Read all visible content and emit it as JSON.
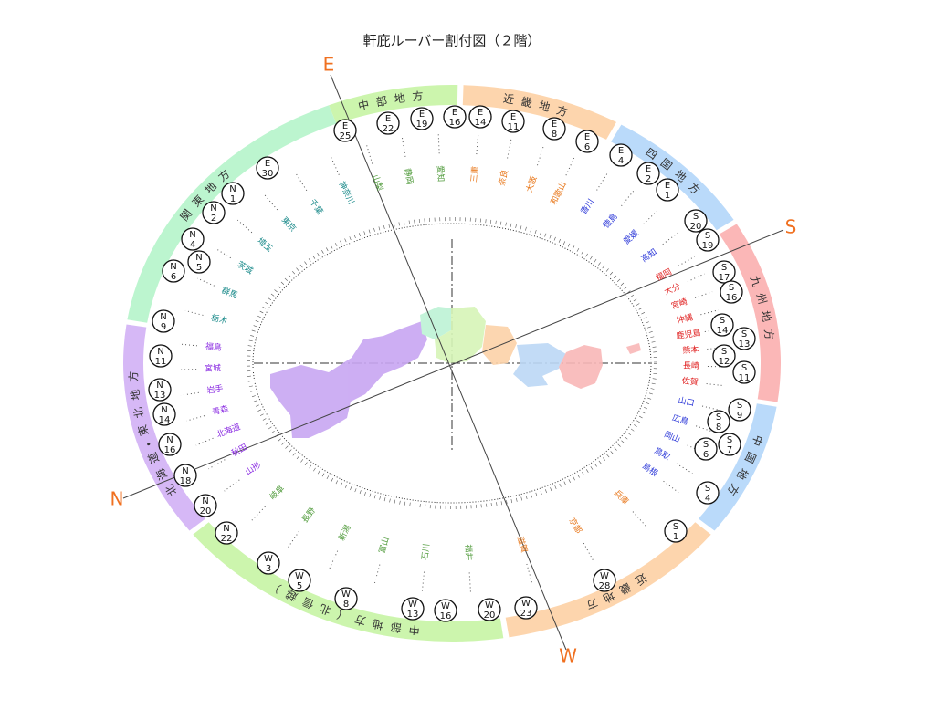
{
  "title": "軒庇ルーバー割付図（２階）",
  "compass": [
    "E",
    "S",
    "W",
    "N"
  ],
  "regions": [
    {
      "name": "中部地方",
      "color": "#ccf5ad",
      "text_color": "#4f9a3a",
      "prefectures": [
        "山梨",
        "静岡",
        "愛知"
      ]
    },
    {
      "name": "近畿地方",
      "color": "#fdd5ad",
      "text_color": "#e8781c",
      "prefectures": [
        "三重",
        "奈良",
        "大阪",
        "和歌山"
      ]
    },
    {
      "name": "四国地方",
      "color": "#badafa",
      "text_color": "#2a36d8",
      "prefectures": [
        "香川",
        "徳島",
        "愛媛",
        "高知"
      ]
    },
    {
      "name": "九州地方",
      "color": "#fbb7b7",
      "text_color": "#e02020",
      "prefectures": [
        "福岡",
        "大分",
        "宮崎",
        "沖縄",
        "鹿児島",
        "熊本",
        "長崎",
        "佐賀"
      ]
    },
    {
      "name": "中国地方",
      "color": "#badafa",
      "text_color": "#2a36d8",
      "prefectures": [
        "山口",
        "広島",
        "岡山",
        "鳥取",
        "島根"
      ]
    },
    {
      "name": "近畿地方",
      "color": "#fdd5ad",
      "text_color": "#e8781c",
      "prefectures": [
        "兵庫",
        "京都",
        "滋賀"
      ]
    },
    {
      "name": "中部地方（北信越）",
      "color": "#ccf5ad",
      "text_color": "#4f9a3a",
      "prefectures": [
        "福井",
        "石川",
        "富山",
        "新潟",
        "長野",
        "岐阜"
      ]
    },
    {
      "name": "北海道・東北地方",
      "color": "#d6b8f6",
      "text_color": "#8a2be2",
      "prefectures": [
        "山形",
        "秋田",
        "北海道",
        "青森",
        "岩手",
        "宮城",
        "福島"
      ]
    },
    {
      "name": "関東地方",
      "color": "#bcf5cf",
      "text_color": "#1a8a8a",
      "prefectures": [
        "栃木",
        "群馬",
        "茨城",
        "埼玉",
        "東京",
        "千葉",
        "神奈川"
      ]
    }
  ],
  "markers": [
    {
      "dir": "E",
      "num": 25
    },
    {
      "dir": "E",
      "num": 22
    },
    {
      "dir": "E",
      "num": 19
    },
    {
      "dir": "E",
      "num": 16
    },
    {
      "dir": "E",
      "num": 14
    },
    {
      "dir": "E",
      "num": 11
    },
    {
      "dir": "E",
      "num": 8
    },
    {
      "dir": "E",
      "num": 6
    },
    {
      "dir": "E",
      "num": 4
    },
    {
      "dir": "E",
      "num": 2
    },
    {
      "dir": "E",
      "num": 1
    },
    {
      "dir": "S",
      "num": 20
    },
    {
      "dir": "S",
      "num": 19
    },
    {
      "dir": "S",
      "num": 17
    },
    {
      "dir": "S",
      "num": 16
    },
    {
      "dir": "S",
      "num": 14
    },
    {
      "dir": "S",
      "num": 13
    },
    {
      "dir": "S",
      "num": 12
    },
    {
      "dir": "S",
      "num": 11
    },
    {
      "dir": "S",
      "num": 9
    },
    {
      "dir": "S",
      "num": 8
    },
    {
      "dir": "S",
      "num": 7
    },
    {
      "dir": "S",
      "num": 6
    },
    {
      "dir": "S",
      "num": 4
    },
    {
      "dir": "S",
      "num": 1
    },
    {
      "dir": "W",
      "num": 28
    },
    {
      "dir": "W",
      "num": 23
    },
    {
      "dir": "W",
      "num": 20
    },
    {
      "dir": "W",
      "num": 16
    },
    {
      "dir": "W",
      "num": 13
    },
    {
      "dir": "W",
      "num": 8
    },
    {
      "dir": "W",
      "num": 5
    },
    {
      "dir": "W",
      "num": 3
    },
    {
      "dir": "N",
      "num": 22
    },
    {
      "dir": "N",
      "num": 20
    },
    {
      "dir": "N",
      "num": 18
    },
    {
      "dir": "N",
      "num": 16
    },
    {
      "dir": "N",
      "num": 14
    },
    {
      "dir": "N",
      "num": 13
    },
    {
      "dir": "N",
      "num": 11
    },
    {
      "dir": "N",
      "num": 9
    },
    {
      "dir": "N",
      "num": 6
    },
    {
      "dir": "N",
      "num": 5
    },
    {
      "dir": "N",
      "num": 4
    },
    {
      "dir": "N",
      "num": 2
    },
    {
      "dir": "N",
      "num": 1
    },
    {
      "dir": "E",
      "num": 30
    }
  ]
}
